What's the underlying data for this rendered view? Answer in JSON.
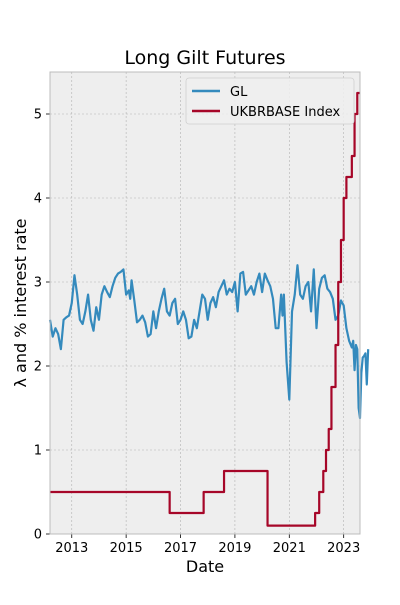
{
  "chart_data": {
    "type": "line",
    "title": "Long Gilt Futures",
    "xlabel": "Date",
    "ylabel": "λ and % interest rate",
    "xlim": [
      2012.2,
      2023.6
    ],
    "ylim": [
      0,
      5.5
    ],
    "x_ticks": [
      2013,
      2015,
      2017,
      2019,
      2021,
      2023
    ],
    "y_ticks": [
      0,
      1,
      2,
      3,
      4,
      5
    ],
    "grid": true,
    "legend_position": "top-right",
    "series": [
      {
        "name": "GL",
        "color": "#348ABD",
        "points": [
          [
            2012.2,
            2.55
          ],
          [
            2012.3,
            2.35
          ],
          [
            2012.4,
            2.45
          ],
          [
            2012.5,
            2.38
          ],
          [
            2012.6,
            2.2
          ],
          [
            2012.7,
            2.55
          ],
          [
            2012.8,
            2.58
          ],
          [
            2012.9,
            2.6
          ],
          [
            2013.0,
            2.75
          ],
          [
            2013.1,
            3.08
          ],
          [
            2013.2,
            2.85
          ],
          [
            2013.3,
            2.55
          ],
          [
            2013.4,
            2.5
          ],
          [
            2013.5,
            2.65
          ],
          [
            2013.6,
            2.85
          ],
          [
            2013.7,
            2.55
          ],
          [
            2013.8,
            2.42
          ],
          [
            2013.9,
            2.7
          ],
          [
            2014.0,
            2.55
          ],
          [
            2014.1,
            2.85
          ],
          [
            2014.2,
            2.95
          ],
          [
            2014.3,
            2.88
          ],
          [
            2014.4,
            2.82
          ],
          [
            2014.5,
            2.95
          ],
          [
            2014.6,
            3.05
          ],
          [
            2014.7,
            3.1
          ],
          [
            2014.8,
            3.12
          ],
          [
            2014.9,
            3.15
          ],
          [
            2015.0,
            2.85
          ],
          [
            2015.1,
            2.9
          ],
          [
            2015.15,
            2.8
          ],
          [
            2015.2,
            3.02
          ],
          [
            2015.3,
            2.78
          ],
          [
            2015.4,
            2.52
          ],
          [
            2015.5,
            2.55
          ],
          [
            2015.6,
            2.6
          ],
          [
            2015.7,
            2.52
          ],
          [
            2015.8,
            2.35
          ],
          [
            2015.9,
            2.38
          ],
          [
            2016.0,
            2.65
          ],
          [
            2016.1,
            2.45
          ],
          [
            2016.2,
            2.65
          ],
          [
            2016.3,
            2.8
          ],
          [
            2016.4,
            2.92
          ],
          [
            2016.5,
            2.65
          ],
          [
            2016.6,
            2.6
          ],
          [
            2016.7,
            2.75
          ],
          [
            2016.8,
            2.8
          ],
          [
            2016.9,
            2.5
          ],
          [
            2017.0,
            2.55
          ],
          [
            2017.1,
            2.65
          ],
          [
            2017.2,
            2.55
          ],
          [
            2017.3,
            2.33
          ],
          [
            2017.4,
            2.35
          ],
          [
            2017.5,
            2.55
          ],
          [
            2017.6,
            2.45
          ],
          [
            2017.7,
            2.65
          ],
          [
            2017.8,
            2.85
          ],
          [
            2017.9,
            2.8
          ],
          [
            2018.0,
            2.55
          ],
          [
            2018.1,
            2.75
          ],
          [
            2018.2,
            2.82
          ],
          [
            2018.3,
            2.7
          ],
          [
            2018.4,
            2.88
          ],
          [
            2018.5,
            2.95
          ],
          [
            2018.6,
            3.02
          ],
          [
            2018.7,
            2.85
          ],
          [
            2018.8,
            2.92
          ],
          [
            2018.9,
            2.88
          ],
          [
            2019.0,
            3.0
          ],
          [
            2019.1,
            2.65
          ],
          [
            2019.2,
            3.1
          ],
          [
            2019.3,
            3.12
          ],
          [
            2019.4,
            2.85
          ],
          [
            2019.5,
            2.9
          ],
          [
            2019.6,
            2.95
          ],
          [
            2019.7,
            2.85
          ],
          [
            2019.8,
            3.0
          ],
          [
            2019.9,
            3.1
          ],
          [
            2020.0,
            2.88
          ],
          [
            2020.1,
            3.1
          ],
          [
            2020.2,
            3.02
          ],
          [
            2020.3,
            2.95
          ],
          [
            2020.4,
            2.8
          ],
          [
            2020.5,
            2.45
          ],
          [
            2020.6,
            2.45
          ],
          [
            2020.7,
            2.85
          ],
          [
            2020.75,
            2.6
          ],
          [
            2020.8,
            2.85
          ],
          [
            2020.9,
            2.05
          ],
          [
            2021.0,
            1.6
          ],
          [
            2021.1,
            2.65
          ],
          [
            2021.2,
            2.85
          ],
          [
            2021.3,
            3.2
          ],
          [
            2021.4,
            2.85
          ],
          [
            2021.5,
            2.8
          ],
          [
            2021.6,
            2.95
          ],
          [
            2021.7,
            3.0
          ],
          [
            2021.8,
            2.65
          ],
          [
            2021.9,
            3.15
          ],
          [
            2022.0,
            2.45
          ],
          [
            2022.1,
            2.92
          ],
          [
            2022.2,
            3.05
          ],
          [
            2022.3,
            3.08
          ],
          [
            2022.4,
            2.92
          ],
          [
            2022.5,
            2.88
          ],
          [
            2022.6,
            2.8
          ],
          [
            2022.7,
            2.55
          ],
          [
            2022.8,
            2.6
          ],
          [
            2022.9,
            2.78
          ],
          [
            2023.0,
            2.72
          ],
          [
            2023.1,
            2.45
          ],
          [
            2023.2,
            2.3
          ],
          [
            2023.3,
            2.22
          ],
          [
            2023.35,
            2.3
          ],
          [
            2023.4,
            1.95
          ],
          [
            2023.45,
            2.25
          ],
          [
            2023.5,
            2.2
          ],
          [
            2023.55,
            1.5
          ],
          [
            2023.6,
            1.38
          ],
          [
            2023.65,
            1.92
          ],
          [
            2023.7,
            2.1
          ],
          [
            2023.75,
            2.12
          ],
          [
            2023.8,
            2.15
          ],
          [
            2023.85,
            1.78
          ],
          [
            2023.9,
            2.2
          ]
        ]
      },
      {
        "name": "UKBRBASE Index",
        "color": "#A60628",
        "step": true,
        "points": [
          [
            2012.2,
            0.5
          ],
          [
            2016.6,
            0.5
          ],
          [
            2016.6,
            0.25
          ],
          [
            2017.85,
            0.25
          ],
          [
            2017.85,
            0.5
          ],
          [
            2018.6,
            0.5
          ],
          [
            2018.6,
            0.75
          ],
          [
            2020.2,
            0.75
          ],
          [
            2020.2,
            0.1
          ],
          [
            2021.95,
            0.1
          ],
          [
            2021.95,
            0.25
          ],
          [
            2022.1,
            0.25
          ],
          [
            2022.1,
            0.5
          ],
          [
            2022.25,
            0.5
          ],
          [
            2022.25,
            0.75
          ],
          [
            2022.35,
            0.75
          ],
          [
            2022.35,
            1.0
          ],
          [
            2022.45,
            1.0
          ],
          [
            2022.45,
            1.25
          ],
          [
            2022.55,
            1.25
          ],
          [
            2022.55,
            1.75
          ],
          [
            2022.7,
            1.75
          ],
          [
            2022.7,
            2.25
          ],
          [
            2022.8,
            2.25
          ],
          [
            2022.8,
            3.0
          ],
          [
            2022.9,
            3.0
          ],
          [
            2022.9,
            3.5
          ],
          [
            2023.0,
            3.5
          ],
          [
            2023.0,
            4.0
          ],
          [
            2023.1,
            4.0
          ],
          [
            2023.1,
            4.25
          ],
          [
            2023.3,
            4.25
          ],
          [
            2023.3,
            4.5
          ],
          [
            2023.4,
            4.5
          ],
          [
            2023.4,
            5.0
          ],
          [
            2023.5,
            5.0
          ],
          [
            2023.5,
            5.25
          ],
          [
            2023.6,
            5.25
          ]
        ]
      }
    ]
  }
}
